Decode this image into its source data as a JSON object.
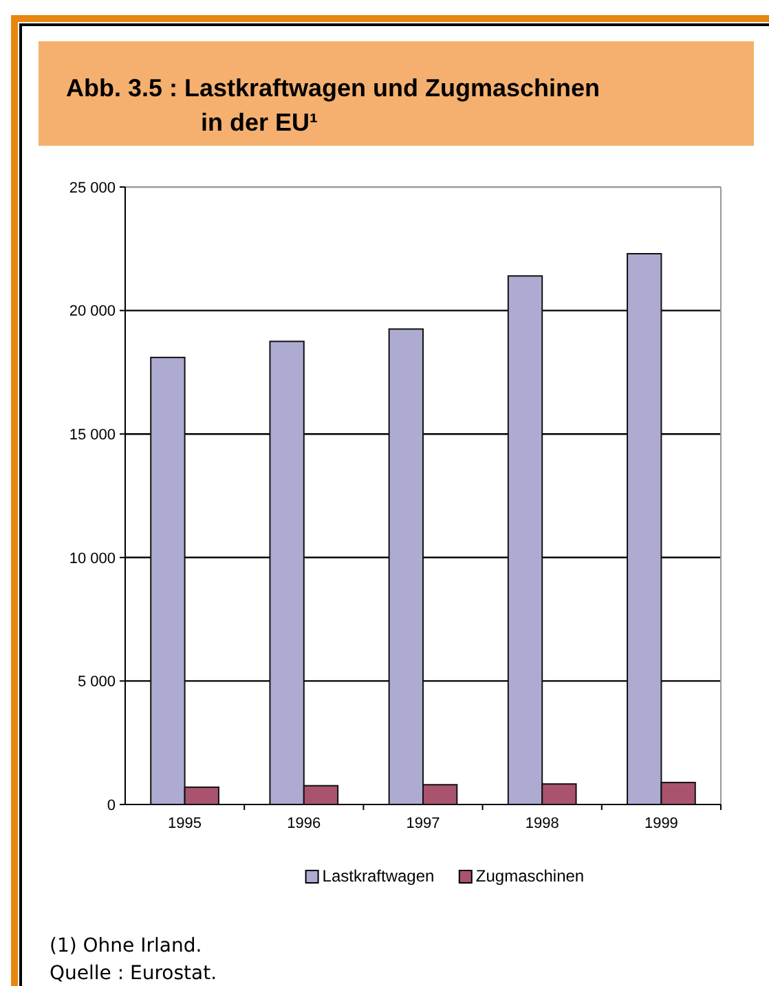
{
  "chart_data": {
    "type": "bar",
    "title": "Abb. 3.5 : Lastkraftwagen und Zugmaschinen in der EU¹",
    "categories": [
      "1995",
      "1996",
      "1997",
      "1998",
      "1999"
    ],
    "series": [
      {
        "name": "Lastkraftwagen",
        "color": "#aeabd2",
        "values": [
          18100,
          18750,
          19250,
          21400,
          22300
        ]
      },
      {
        "name": "Zugmaschinen",
        "color": "#a9536f",
        "values": [
          700,
          760,
          800,
          830,
          890
        ]
      }
    ],
    "ylim": [
      0,
      25000
    ],
    "yticks": [
      {
        "value": 0,
        "label": "0"
      },
      {
        "value": 5000,
        "label": "5 000"
      },
      {
        "value": 10000,
        "label": "10 000"
      },
      {
        "value": 15000,
        "label": "15 000"
      },
      {
        "value": 20000,
        "label": "20 000"
      },
      {
        "value": 25000,
        "label": "25 000"
      }
    ],
    "grid": "y",
    "legend": "bottom",
    "annotations": [
      "(1) Ohne Irland.",
      "Quelle : Eurostat."
    ]
  }
}
